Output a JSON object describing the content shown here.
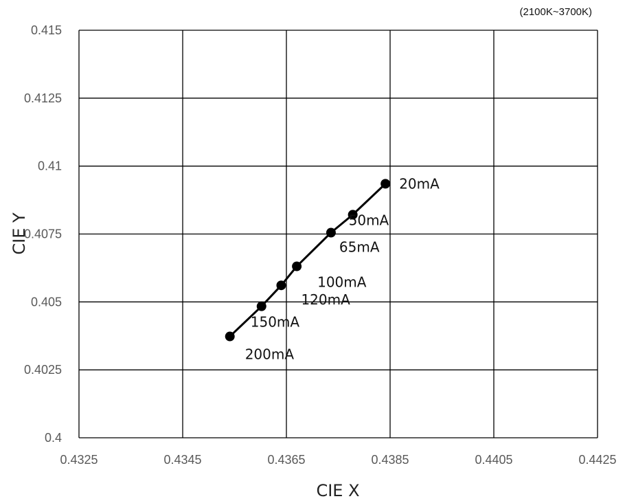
{
  "chart_data": {
    "type": "line",
    "title": "",
    "annotation": "(2100K~3700K)",
    "xlabel": "CIE X",
    "ylabel": "CIE Y",
    "xlim": [
      0.4325,
      0.4425
    ],
    "ylim": [
      0.4,
      0.415
    ],
    "xticks": [
      "0.4325",
      "0.4345",
      "0.4365",
      "0.4385",
      "0.4405",
      "0.4425"
    ],
    "yticks": [
      "0.4",
      "0.4025",
      "0.405",
      "0.4075",
      "0.41",
      "0.4125",
      "0.415"
    ],
    "grid": true,
    "legend": "none",
    "series": [
      {
        "points": [
          {
            "x": 0.43841,
            "y": 0.40935,
            "label": "20mA"
          },
          {
            "x": 0.43778,
            "y": 0.40821,
            "label": "50mA"
          },
          {
            "x": 0.43736,
            "y": 0.40755,
            "label": "65mA"
          },
          {
            "x": 0.4367,
            "y": 0.40631,
            "label": "100mA"
          },
          {
            "x": 0.4364,
            "y": 0.40561,
            "label": "120mA"
          },
          {
            "x": 0.43602,
            "y": 0.40484,
            "label": "150mA"
          },
          {
            "x": 0.43541,
            "y": 0.40373,
            "label": "200mA"
          }
        ]
      }
    ]
  },
  "colors": {
    "series": "#000000",
    "grid": "#000000",
    "tick_text": "#595959"
  }
}
